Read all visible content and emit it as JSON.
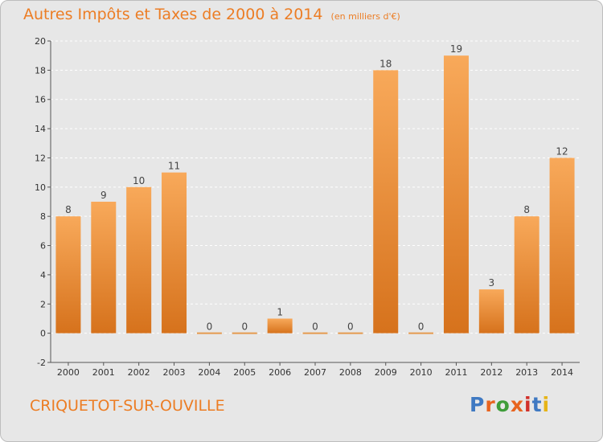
{
  "header": {
    "title": "Autres Impôts et Taxes de 2000 à 2014",
    "subtitle": "(en milliers d'€)"
  },
  "footer": {
    "commune": "CRIQUETOT-SUR-OUVILLE",
    "logo": "Proxiti"
  },
  "colors": {
    "accent": "#ec7d24",
    "bar_light": "#f7a655",
    "bar_dark": "#d8741f",
    "background": "#e7e7e7",
    "grid": "#ffffff"
  },
  "chart_data": {
    "type": "bar",
    "title": "Autres Impôts et Taxes de 2000 à 2014",
    "subtitle": "(en milliers d'€)",
    "categories": [
      "2000",
      "2001",
      "2002",
      "2003",
      "2004",
      "2005",
      "2006",
      "2007",
      "2008",
      "2009",
      "2010",
      "2011",
      "2012",
      "2013",
      "2014"
    ],
    "values": [
      8,
      9,
      10,
      11,
      0,
      0,
      1,
      0,
      0,
      18,
      0,
      19,
      3,
      8,
      12
    ],
    "ylim": [
      -2,
      20
    ],
    "yticks": [
      -2,
      0,
      2,
      4,
      6,
      8,
      10,
      12,
      14,
      16,
      18,
      20
    ],
    "xlabel": "",
    "ylabel": "",
    "grid": true,
    "data_labels": true
  }
}
